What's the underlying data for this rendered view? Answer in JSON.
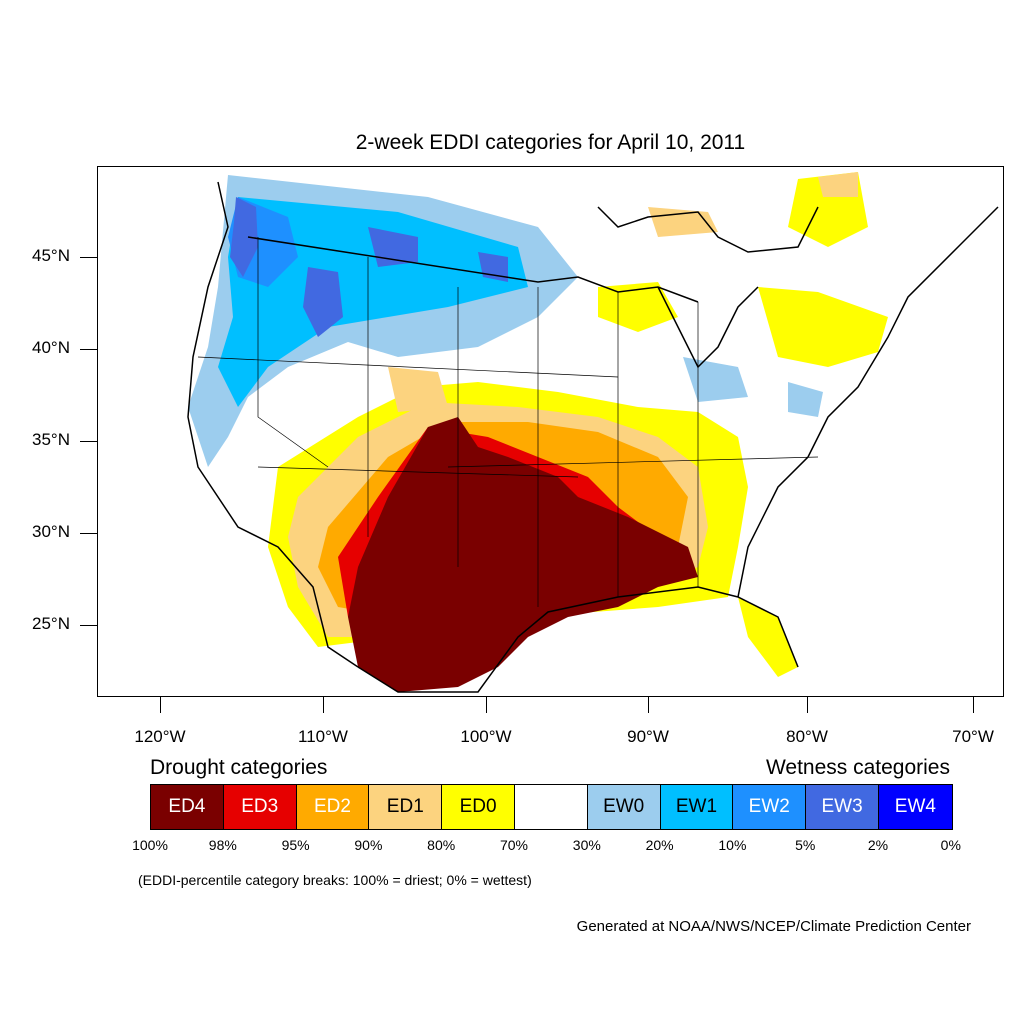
{
  "title": "2-week EDDI categories for April 10, 2011",
  "lat_labels": [
    "45°N",
    "40°N",
    "35°N",
    "30°N",
    "25°N"
  ],
  "lon_labels": [
    "120°W",
    "110°W",
    "100°W",
    "90°W",
    "80°W",
    "70°W"
  ],
  "legend": {
    "drought_heading": "Drought categories",
    "wetness_heading": "Wetness categories",
    "categories": [
      {
        "label": "ED4",
        "color": "#7a0000",
        "text_color": "#ffffff"
      },
      {
        "label": "ED3",
        "color": "#e60000",
        "text_color": "#ffffff"
      },
      {
        "label": "ED2",
        "color": "#ffaa00",
        "text_color": "#ffffff"
      },
      {
        "label": "ED1",
        "color": "#fcd37f",
        "text_color": "#000000"
      },
      {
        "label": "ED0",
        "color": "#ffff00",
        "text_color": "#000000"
      },
      {
        "label": "",
        "color": "#ffffff",
        "text_color": "#000000"
      },
      {
        "label": "EW0",
        "color": "#9ccdee",
        "text_color": "#000000"
      },
      {
        "label": "EW1",
        "color": "#00bfff",
        "text_color": "#000000"
      },
      {
        "label": "EW2",
        "color": "#1e90ff",
        "text_color": "#ffffff"
      },
      {
        "label": "EW3",
        "color": "#4169e1",
        "text_color": "#ffffff"
      },
      {
        "label": "EW4",
        "color": "#0000ff",
        "text_color": "#ffffff"
      }
    ],
    "percentile_breaks": [
      "100%",
      "98%",
      "95%",
      "90%",
      "80%",
      "70%",
      "30%",
      "20%",
      "10%",
      "5%",
      "2%",
      "0%"
    ]
  },
  "note": "(EDDI-percentile category breaks: 100% = driest; 0% = wettest)",
  "credit": "Generated at NOAA/NWS/NCEP/Climate Prediction Center"
}
